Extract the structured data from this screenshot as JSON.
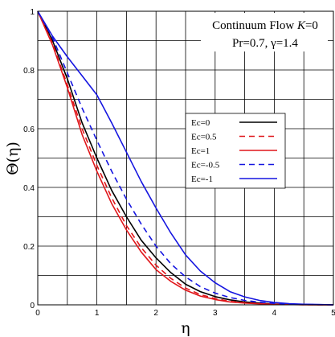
{
  "chart_data": {
    "type": "line",
    "xlabel": "η",
    "ylabel": "Θ(η)",
    "xlim": [
      0,
      5
    ],
    "ylim": [
      0,
      1
    ],
    "xticks": [
      "0",
      "1",
      "2",
      "3",
      "4",
      "5"
    ],
    "yticks": [
      "0",
      "0.2",
      "0.4",
      "0.6",
      "0.8",
      "1"
    ],
    "grid": true,
    "legend_position": "center-right",
    "annotation": {
      "line1_prefix": "Continuum Flow ",
      "line1_var": "K",
      "line1_suffix": "=0",
      "line2": "Pr=0.7, γ=1.4"
    },
    "series": [
      {
        "name": "Ec=0",
        "color": "#000000",
        "dash": "solid",
        "x": [
          0,
          0.25,
          0.5,
          0.75,
          1,
          1.25,
          1.5,
          1.75,
          2,
          2.25,
          2.5,
          2.75,
          3,
          3.25,
          3.5,
          3.75,
          4,
          4.25,
          4.5,
          4.75,
          5
        ],
        "y": [
          1,
          0.9,
          0.77,
          0.62,
          0.5,
          0.39,
          0.3,
          0.22,
          0.16,
          0.11,
          0.07,
          0.045,
          0.028,
          0.017,
          0.01,
          0.006,
          0.003,
          0.0015,
          0.0008,
          0.0003,
          0
        ]
      },
      {
        "name": "Ec=0.5",
        "color": "#e0161a",
        "dash": "dashed",
        "x": [
          0,
          0.25,
          0.5,
          0.75,
          1,
          1.25,
          1.5,
          1.75,
          2,
          2.25,
          2.5,
          2.75,
          3,
          3.25,
          3.5,
          3.75,
          4,
          4.25,
          4.5,
          4.75,
          5
        ],
        "y": [
          1,
          0.89,
          0.75,
          0.6,
          0.475,
          0.365,
          0.27,
          0.195,
          0.135,
          0.09,
          0.057,
          0.035,
          0.021,
          0.012,
          0.007,
          0.004,
          0.002,
          0.001,
          0.0005,
          0.0002,
          0
        ]
      },
      {
        "name": "Ec=1",
        "color": "#e0161a",
        "dash": "solid",
        "x": [
          0,
          0.25,
          0.5,
          0.75,
          1,
          1.25,
          1.5,
          1.75,
          2,
          2.25,
          2.5,
          2.75,
          3,
          3.25,
          3.5,
          3.75,
          4,
          4.25,
          4.5,
          4.75,
          5
        ],
        "y": [
          1,
          0.885,
          0.74,
          0.58,
          0.455,
          0.345,
          0.255,
          0.18,
          0.12,
          0.08,
          0.05,
          0.03,
          0.018,
          0.01,
          0.006,
          0.0035,
          0.002,
          0.001,
          0.0004,
          0.0002,
          0
        ]
      },
      {
        "name": "Ec=-0.5",
        "color": "#1515e0",
        "dash": "dashed",
        "x": [
          0,
          0.25,
          0.5,
          0.75,
          1,
          1.25,
          1.5,
          1.75,
          2,
          2.25,
          2.5,
          2.75,
          3,
          3.25,
          3.5,
          3.75,
          4,
          4.25,
          4.5,
          4.75,
          5
        ],
        "y": [
          1,
          0.91,
          0.79,
          0.67,
          0.56,
          0.455,
          0.36,
          0.275,
          0.2,
          0.14,
          0.095,
          0.062,
          0.04,
          0.025,
          0.015,
          0.009,
          0.005,
          0.0025,
          0.0012,
          0.0005,
          0
        ]
      },
      {
        "name": "Ec=-1",
        "color": "#1515e0",
        "dash": "solid",
        "x": [
          0,
          0.25,
          0.5,
          0.75,
          1,
          1.25,
          1.5,
          1.75,
          2,
          2.25,
          2.5,
          2.75,
          3,
          3.25,
          3.5,
          3.75,
          4,
          4.25,
          4.5,
          4.75,
          5
        ],
        "y": [
          1,
          0.915,
          0.845,
          0.78,
          0.715,
          0.62,
          0.52,
          0.42,
          0.33,
          0.245,
          0.17,
          0.115,
          0.075,
          0.045,
          0.027,
          0.015,
          0.008,
          0.004,
          0.002,
          0.001,
          0
        ]
      }
    ]
  }
}
